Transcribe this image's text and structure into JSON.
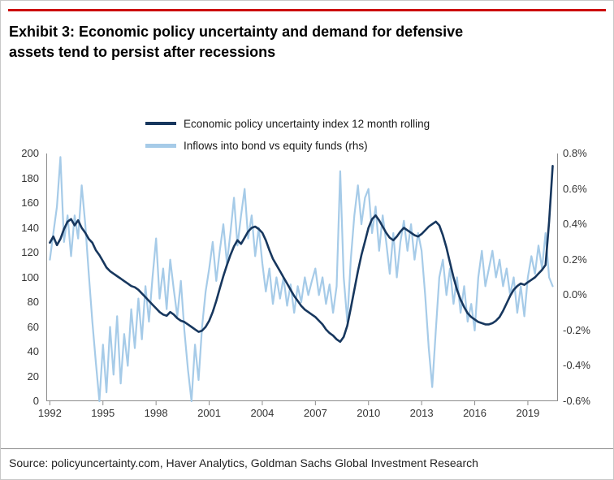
{
  "page": {
    "title_lines": {
      "line1": "Exhibit 3: Economic policy uncertainty and demand for defensive",
      "line2": "assets tend to persist after recessions"
    },
    "source": "Source: policyuncertainty.com, Haver Analytics, Goldman Sachs Global Investment Research",
    "accent_color": "#cc0000"
  },
  "chart_data": {
    "type": "line",
    "title": "Exhibit 3: Economic policy uncertainty and demand for defensive assets tend to persist after recessions",
    "xlabel": "",
    "ylabel_left": "",
    "ylabel_right": "",
    "grid": false,
    "legend_position": "top",
    "legend": [
      {
        "label": "Economic policy uncertainty index 12 month rolling",
        "color": "#17375e"
      },
      {
        "label": "Inflows into bond vs equity funds (rhs)",
        "color": "#a6cbe8"
      }
    ],
    "x_start": 1992.0,
    "x_step": 0.2,
    "xlim": [
      1991.8,
      2020.7
    ],
    "x_ticks": [
      1992,
      1995,
      1998,
      2001,
      2004,
      2007,
      2010,
      2013,
      2016,
      2019
    ],
    "left_axis": {
      "ylim": [
        0,
        200
      ],
      "tick_values": [
        200,
        180,
        160,
        140,
        120,
        100,
        80,
        60,
        40,
        20,
        0
      ],
      "tick_labels": [
        "200",
        "180",
        "160",
        "140",
        "120",
        "100",
        "80",
        "60",
        "40",
        "20",
        "0"
      ]
    },
    "right_axis": {
      "ylim": [
        -0.6,
        0.8
      ],
      "format": "percent",
      "tick_values": [
        0.8,
        0.6,
        0.4,
        0.2,
        0,
        -0.2,
        -0.4,
        -0.6
      ],
      "tick_labels": [
        "0.8%",
        "0.6%",
        "0.4%",
        "0.2%",
        "0.0%",
        "-0.2%",
        "-0.4%",
        "-0.6%"
      ]
    },
    "series": [
      {
        "name": "Inflows into bond vs equity funds (rhs)",
        "axis": "right",
        "color": "#a6cbe8",
        "line_width": 2.2,
        "values": [
          0.2,
          0.35,
          0.5,
          0.78,
          0.3,
          0.45,
          0.22,
          0.45,
          0.32,
          0.62,
          0.4,
          0.12,
          -0.15,
          -0.38,
          -0.6,
          -0.28,
          -0.55,
          -0.18,
          -0.45,
          -0.12,
          -0.5,
          -0.22,
          -0.4,
          -0.08,
          -0.3,
          -0.02,
          -0.25,
          0.05,
          -0.15,
          0.1,
          0.32,
          -0.02,
          0.15,
          -0.08,
          0.2,
          0.03,
          -0.12,
          0.08,
          -0.2,
          -0.42,
          -0.6,
          -0.28,
          -0.48,
          -0.18,
          0.02,
          0.15,
          0.3,
          0.08,
          0.25,
          0.4,
          0.18,
          0.35,
          0.55,
          0.28,
          0.45,
          0.6,
          0.32,
          0.45,
          0.22,
          0.38,
          0.18,
          0.02,
          0.15,
          -0.05,
          0.1,
          -0.02,
          0.1,
          -0.06,
          0.06,
          -0.1,
          0.05,
          -0.04,
          0.1,
          0,
          0.08,
          0.15,
          0,
          0.1,
          -0.05,
          0.06,
          -0.1,
          0.05,
          0.7,
          0.1,
          -0.15,
          0.2,
          0.45,
          0.62,
          0.4,
          0.55,
          0.6,
          0.35,
          0.5,
          0.25,
          0.45,
          0.3,
          0.12,
          0.35,
          0.1,
          0.3,
          0.42,
          0.25,
          0.4,
          0.2,
          0.35,
          0.25,
          0,
          -0.3,
          -0.52,
          -0.2,
          0.1,
          0.2,
          0,
          0.15,
          -0.05,
          0.1,
          -0.1,
          0.05,
          -0.15,
          -0.05,
          -0.2,
          0.1,
          0.25,
          0.05,
          0.15,
          0.25,
          0.1,
          0.2,
          0.05,
          0.15,
          0,
          0.1,
          -0.1,
          0.05,
          -0.12,
          0.1,
          0.22,
          0.12,
          0.28,
          0.15,
          0.35,
          0.1,
          0.05
        ]
      },
      {
        "name": "Economic policy uncertainty index 12 month rolling",
        "axis": "left",
        "color": "#17375e",
        "line_width": 2.6,
        "values": [
          128,
          133,
          126,
          131,
          139,
          145,
          147,
          142,
          146,
          140,
          136,
          131,
          128,
          122,
          118,
          113,
          108,
          105,
          103,
          101,
          99,
          97,
          95,
          93,
          92,
          90,
          87,
          84,
          81,
          78,
          75,
          72,
          70,
          69,
          72,
          70,
          67,
          65,
          64,
          62,
          60,
          58,
          56,
          57,
          60,
          65,
          72,
          81,
          91,
          101,
          110,
          118,
          125,
          130,
          127,
          132,
          137,
          140,
          141,
          139,
          136,
          130,
          122,
          115,
          110,
          105,
          100,
          95,
          90,
          85,
          81,
          77,
          74,
          72,
          70,
          68,
          65,
          62,
          58,
          55,
          53,
          50,
          48,
          52,
          61,
          75,
          90,
          105,
          118,
          129,
          140,
          147,
          150,
          146,
          141,
          136,
          132,
          130,
          133,
          137,
          140,
          138,
          136,
          134,
          133,
          135,
          138,
          141,
          143,
          145,
          142,
          134,
          124,
          112,
          100,
          90,
          82,
          76,
          71,
          68,
          66,
          64,
          63,
          62,
          62,
          63,
          65,
          68,
          73,
          79,
          85,
          90,
          93,
          95,
          94,
          96,
          98,
          100,
          103,
          106,
          110,
          145,
          190
        ]
      }
    ]
  }
}
